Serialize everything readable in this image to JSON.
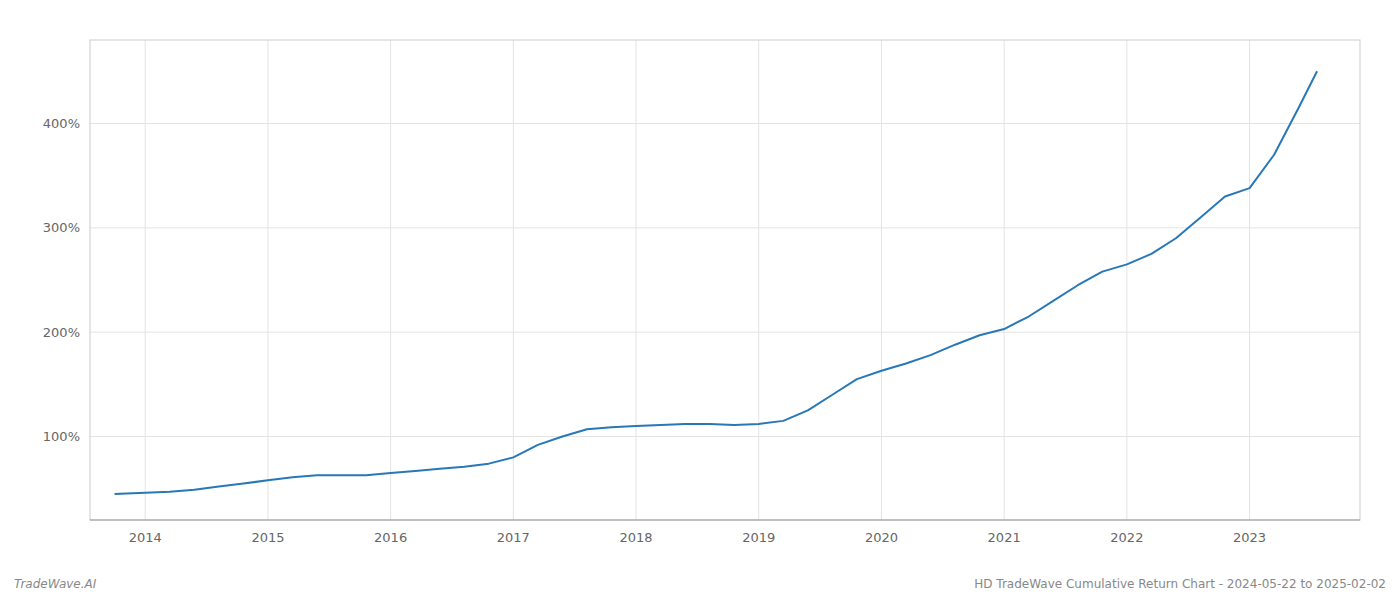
{
  "chart_data": {
    "type": "line",
    "title": "HD TradeWave Cumulative Return Chart - 2024-05-22 to 2025-02-02",
    "annotations": [
      "TradeWave.AI"
    ],
    "x": [
      2013.75,
      2014.0,
      2014.2,
      2014.4,
      2014.6,
      2014.8,
      2015.0,
      2015.2,
      2015.4,
      2015.6,
      2015.8,
      2016.0,
      2016.2,
      2016.4,
      2016.6,
      2016.8,
      2017.0,
      2017.2,
      2017.4,
      2017.6,
      2017.8,
      2018.0,
      2018.2,
      2018.4,
      2018.6,
      2018.8,
      2019.0,
      2019.2,
      2019.4,
      2019.6,
      2019.8,
      2020.0,
      2020.2,
      2020.4,
      2020.6,
      2020.8,
      2021.0,
      2021.2,
      2021.4,
      2021.6,
      2021.8,
      2022.0,
      2022.2,
      2022.4,
      2022.6,
      2022.8,
      2023.0,
      2023.2,
      2023.4,
      2023.55
    ],
    "values": [
      45,
      46,
      47,
      49,
      52,
      55,
      58,
      61,
      63,
      63,
      63,
      65,
      67,
      69,
      71,
      74,
      80,
      92,
      100,
      107,
      109,
      110,
      111,
      112,
      112,
      111,
      112,
      115,
      125,
      140,
      155,
      163,
      170,
      178,
      188,
      197,
      203,
      215,
      230,
      245,
      258,
      265,
      275,
      290,
      310,
      330,
      338,
      370,
      415,
      450
    ],
    "color": "#2878b8",
    "xlim": [
      2013.55,
      2023.9
    ],
    "xticks": [
      2014,
      2015,
      2016,
      2017,
      2018,
      2019,
      2020,
      2021,
      2022,
      2023
    ],
    "ylim": [
      20,
      480
    ],
    "yticks": [
      {
        "value": 100,
        "label": "100%"
      },
      {
        "value": 200,
        "label": "200%"
      },
      {
        "value": 300,
        "label": "300%"
      },
      {
        "value": 400,
        "label": "400%"
      }
    ],
    "grid": true
  }
}
